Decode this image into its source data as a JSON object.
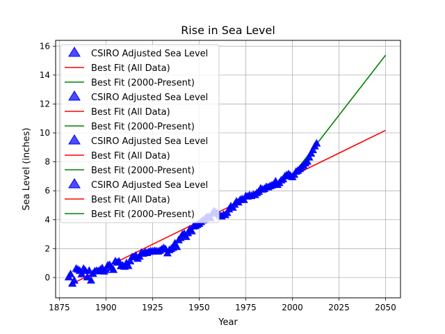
{
  "chart_data": {
    "type": "scatter",
    "title": "Rise in Sea Level",
    "xlabel": "Year",
    "ylabel": "Sea Level (inches)",
    "xlim": [
      1873,
      2058
    ],
    "ylim": [
      -1.4,
      16.4
    ],
    "xticks": [
      1875,
      1900,
      1925,
      1950,
      1975,
      2000,
      2025,
      2050
    ],
    "yticks": [
      0,
      2,
      4,
      6,
      8,
      10,
      12,
      14,
      16
    ],
    "grid": true,
    "legend_placement": "top-left",
    "legend_entries": [
      {
        "label": "CSIRO Adjusted Sea Level",
        "kind": "marker",
        "color": "#0000ff"
      },
      {
        "label": "Best Fit (All Data)",
        "kind": "line",
        "color": "#ff0000"
      },
      {
        "label": "Best Fit (2000-Present)",
        "kind": "line",
        "color": "#008000"
      },
      {
        "label": "CSIRO Adjusted Sea Level",
        "kind": "marker",
        "color": "#0000ff"
      },
      {
        "label": "Best Fit (All Data)",
        "kind": "line",
        "color": "#ff0000"
      },
      {
        "label": "Best Fit (2000-Present)",
        "kind": "line",
        "color": "#008000"
      },
      {
        "label": "CSIRO Adjusted Sea Level",
        "kind": "marker",
        "color": "#0000ff"
      },
      {
        "label": "Best Fit (All Data)",
        "kind": "line",
        "color": "#ff0000"
      },
      {
        "label": "Best Fit (2000-Present)",
        "kind": "line",
        "color": "#008000"
      },
      {
        "label": "CSIRO Adjusted Sea Level",
        "kind": "marker",
        "color": "#0000ff"
      },
      {
        "label": "Best Fit (All Data)",
        "kind": "line",
        "color": "#ff0000"
      },
      {
        "label": "Best Fit (2000-Present)",
        "kind": "line",
        "color": "#008000"
      }
    ],
    "series": [
      {
        "name": "CSIRO Adjusted Sea Level",
        "type": "scatter",
        "marker": "triangle",
        "color": "#0000ff",
        "x": [
          1880,
          1881,
          1882,
          1883,
          1884,
          1885,
          1886,
          1887,
          1888,
          1889,
          1890,
          1891,
          1892,
          1893,
          1894,
          1895,
          1896,
          1897,
          1898,
          1899,
          1900,
          1901,
          1902,
          1903,
          1904,
          1905,
          1906,
          1907,
          1908,
          1909,
          1910,
          1911,
          1912,
          1913,
          1914,
          1915,
          1916,
          1917,
          1918,
          1919,
          1920,
          1921,
          1922,
          1923,
          1924,
          1925,
          1926,
          1927,
          1928,
          1929,
          1930,
          1931,
          1932,
          1933,
          1934,
          1935,
          1936,
          1937,
          1938,
          1939,
          1940,
          1941,
          1942,
          1943,
          1944,
          1945,
          1946,
          1947,
          1948,
          1949,
          1950,
          1951,
          1952,
          1953,
          1954,
          1955,
          1956,
          1957,
          1958,
          1959,
          1960,
          1961,
          1962,
          1963,
          1964,
          1965,
          1966,
          1967,
          1968,
          1969,
          1970,
          1971,
          1972,
          1973,
          1974,
          1975,
          1976,
          1977,
          1978,
          1979,
          1980,
          1981,
          1982,
          1983,
          1984,
          1985,
          1986,
          1987,
          1988,
          1989,
          1990,
          1991,
          1992,
          1993,
          1994,
          1995,
          1996,
          1997,
          1998,
          1999,
          2000,
          2001,
          2002,
          2003,
          2004,
          2005,
          2006,
          2007,
          2008,
          2009,
          2010,
          2011,
          2012,
          2013
        ],
        "y": [
          0.0,
          0.22,
          -0.44,
          -0.23,
          0.59,
          0.53,
          0.44,
          0.22,
          0.59,
          0.44,
          0.0,
          0.45,
          -0.22,
          0.24,
          0.41,
          0.44,
          0.42,
          0.52,
          0.63,
          0.4,
          0.51,
          0.82,
          0.85,
          0.67,
          0.51,
          1.1,
          1.02,
          1.09,
          0.77,
          0.81,
          0.73,
          0.98,
          0.78,
          1.11,
          1.39,
          1.39,
          1.5,
          1.28,
          1.43,
          1.69,
          1.63,
          1.73,
          1.68,
          1.76,
          1.8,
          1.78,
          1.82,
          1.8,
          1.78,
          1.84,
          1.94,
          2.02,
          1.94,
          1.66,
          1.88,
          1.96,
          2.04,
          2.34,
          2.1,
          2.56,
          2.72,
          2.95,
          3.01,
          2.79,
          3.05,
          3.32,
          3.18,
          3.52,
          3.55,
          3.62,
          3.7,
          3.82,
          3.93,
          4.01,
          4.15,
          4.17,
          4.09,
          4.4,
          4.56,
          4.48,
          4.4,
          4.28,
          4.21,
          4.32,
          4.3,
          4.45,
          4.7,
          4.9,
          4.81,
          5.02,
          5.23,
          5.18,
          5.35,
          5.41,
          5.35,
          5.61,
          5.58,
          5.67,
          5.62,
          5.71,
          5.69,
          5.83,
          5.92,
          6.14,
          6.06,
          6.11,
          6.24,
          6.22,
          6.3,
          6.35,
          6.42,
          6.63,
          6.39,
          6.52,
          6.7,
          6.78,
          6.98,
          7.06,
          7.13,
          7.02,
          6.92,
          7.09,
          7.3,
          7.37,
          7.48,
          7.61,
          7.72,
          7.88,
          8.0,
          8.28,
          8.55,
          8.79,
          9.05,
          9.25
        ]
      },
      {
        "name": "Best Fit (All Data)",
        "type": "line",
        "color": "#ff0000",
        "x": [
          1880,
          2050
        ],
        "y": [
          -0.54,
          10.18
        ]
      },
      {
        "name": "Best Fit (2000-Present)",
        "type": "line",
        "color": "#008000",
        "x": [
          2000,
          2050
        ],
        "y": [
          7.06,
          15.38
        ]
      }
    ]
  }
}
